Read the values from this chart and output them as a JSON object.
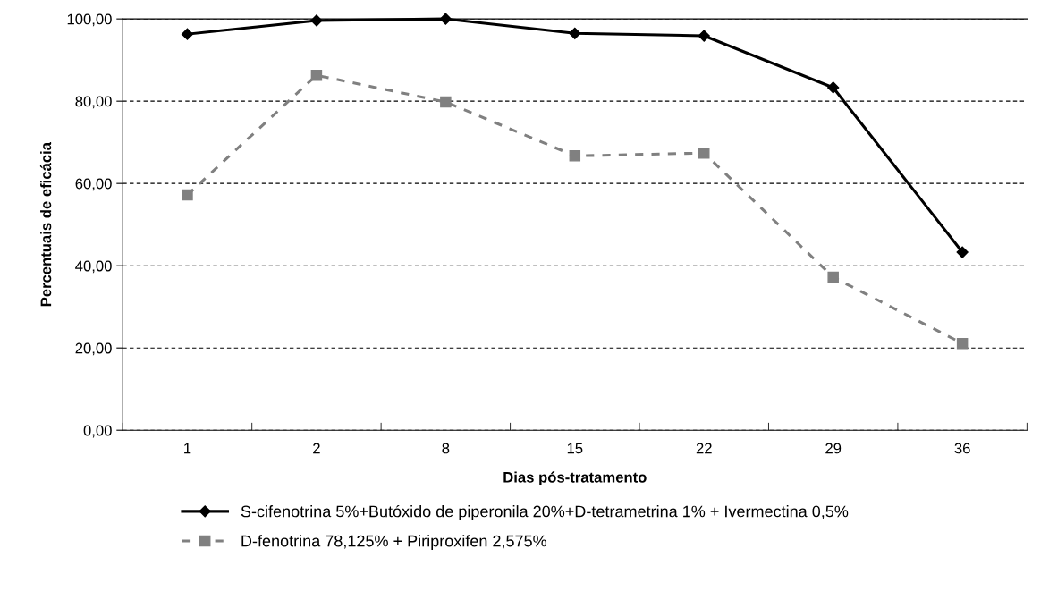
{
  "chart_data": {
    "type": "line",
    "xlabel": "Dias pós-tratamento",
    "ylabel": "Percentuais de eficácia",
    "categories": [
      "1",
      "2",
      "8",
      "15",
      "22",
      "29",
      "36"
    ],
    "series": [
      {
        "name": "S-cifenotrina 5%+Butóxido de piperonila 20%+D-tetrametrina 1% + Ivermectina 0,5%",
        "color": "#000000",
        "marker": "diamond",
        "line_style": "solid",
        "values": [
          96.3,
          99.6,
          100,
          96.5,
          95.9,
          83.3,
          43.3
        ]
      },
      {
        "name": "D-fenotrina 78,125% + Piriproxifen 2,575%",
        "color": "#808080",
        "marker": "square",
        "line_style": "dashed",
        "values": [
          57.2,
          86.3,
          79.8,
          66.7,
          67.4,
          37.2,
          21.1
        ]
      }
    ],
    "ylim": [
      0,
      100
    ],
    "yticks": [
      {
        "value": 0,
        "label": "0,00"
      },
      {
        "value": 20,
        "label": "20,00"
      },
      {
        "value": 40,
        "label": "40,00"
      },
      {
        "value": 60,
        "label": "60,00"
      },
      {
        "value": 80,
        "label": "80,00"
      },
      {
        "value": 100,
        "label": "100,00"
      }
    ],
    "grid": "y",
    "legend": "bottom"
  }
}
